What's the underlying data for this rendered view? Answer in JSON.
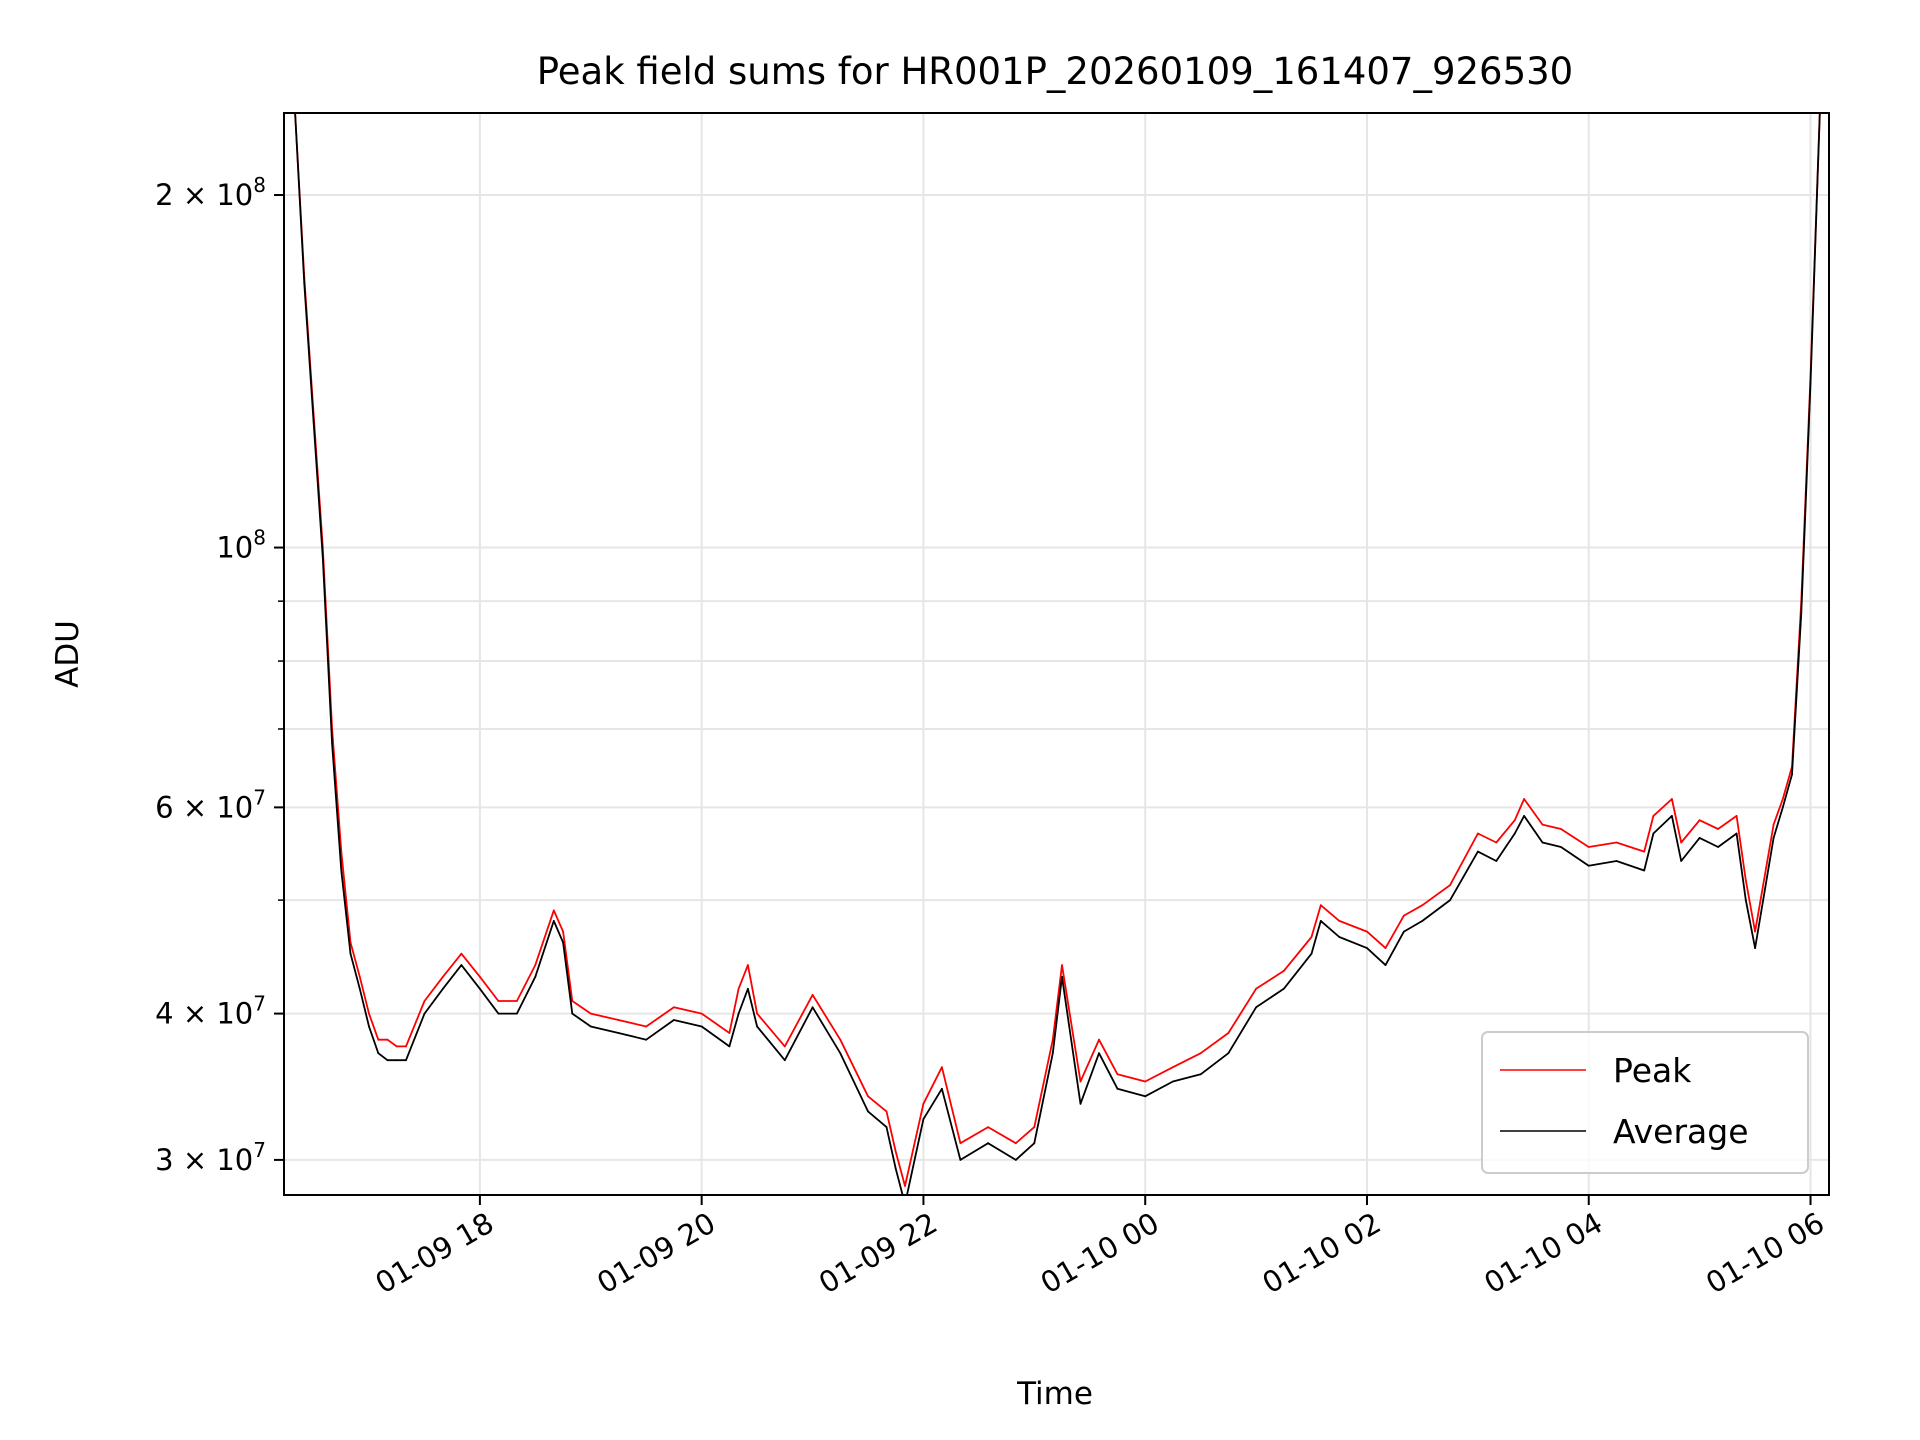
{
  "chart_data": {
    "type": "line",
    "title": "Peak field sums for HR001P_20260109_161407_926530",
    "xlabel": "Time",
    "ylabel": "ADU",
    "x_scale": "time",
    "y_scale": "log",
    "xlim": [
      "2026-01-09 16:14",
      "2026-01-10 06:10"
    ],
    "ylim": [
      28000000,
      235000000
    ],
    "x_ticks": [
      {
        "value": "2026-01-09 18:00",
        "label": "01-09 18"
      },
      {
        "value": "2026-01-09 20:00",
        "label": "01-09 20"
      },
      {
        "value": "2026-01-09 22:00",
        "label": "01-09 22"
      },
      {
        "value": "2026-01-10 00:00",
        "label": "01-10 00"
      },
      {
        "value": "2026-01-10 02:00",
        "label": "01-10 02"
      },
      {
        "value": "2026-01-10 04:00",
        "label": "01-10 04"
      },
      {
        "value": "2026-01-10 06:00",
        "label": "01-10 06"
      }
    ],
    "y_ticks": [
      {
        "value": 30000000,
        "mantissa": "3",
        "base": "10",
        "exp": "7"
      },
      {
        "value": 40000000,
        "mantissa": "4",
        "base": "10",
        "exp": "7"
      },
      {
        "value": 60000000,
        "mantissa": "6",
        "base": "10",
        "exp": "7"
      },
      {
        "value": 100000000,
        "mantissa": "",
        "base": "10",
        "exp": "8"
      },
      {
        "value": 200000000,
        "mantissa": "2",
        "base": "10",
        "exp": "8"
      }
    ],
    "y_minor_ticks": [
      50000000,
      70000000,
      80000000,
      90000000
    ],
    "grid": true,
    "legend_position": "lower-right",
    "series": [
      {
        "name": "Peak",
        "color": "#ff0000",
        "x": [
          "2026-01-09 16:20",
          "2026-01-09 16:25",
          "2026-01-09 16:30",
          "2026-01-09 16:35",
          "2026-01-09 16:40",
          "2026-01-09 16:45",
          "2026-01-09 16:50",
          "2026-01-09 16:55",
          "2026-01-09 17:00",
          "2026-01-09 17:05",
          "2026-01-09 17:10",
          "2026-01-09 17:15",
          "2026-01-09 17:20",
          "2026-01-09 17:30",
          "2026-01-09 17:40",
          "2026-01-09 17:50",
          "2026-01-09 18:00",
          "2026-01-09 18:10",
          "2026-01-09 18:20",
          "2026-01-09 18:30",
          "2026-01-09 18:40",
          "2026-01-09 18:45",
          "2026-01-09 18:50",
          "2026-01-09 19:00",
          "2026-01-09 19:15",
          "2026-01-09 19:30",
          "2026-01-09 19:45",
          "2026-01-09 20:00",
          "2026-01-09 20:15",
          "2026-01-09 20:20",
          "2026-01-09 20:25",
          "2026-01-09 20:30",
          "2026-01-09 20:45",
          "2026-01-09 21:00",
          "2026-01-09 21:15",
          "2026-01-09 21:30",
          "2026-01-09 21:40",
          "2026-01-09 21:45",
          "2026-01-09 21:50",
          "2026-01-09 22:00",
          "2026-01-09 22:10",
          "2026-01-09 22:20",
          "2026-01-09 22:35",
          "2026-01-09 22:50",
          "2026-01-09 23:00",
          "2026-01-09 23:10",
          "2026-01-09 23:15",
          "2026-01-09 23:25",
          "2026-01-09 23:35",
          "2026-01-09 23:45",
          "2026-01-10 00:00",
          "2026-01-10 00:15",
          "2026-01-10 00:30",
          "2026-01-10 00:45",
          "2026-01-10 01:00",
          "2026-01-10 01:15",
          "2026-01-10 01:30",
          "2026-01-10 01:35",
          "2026-01-10 01:45",
          "2026-01-10 02:00",
          "2026-01-10 02:10",
          "2026-01-10 02:20",
          "2026-01-10 02:30",
          "2026-01-10 02:45",
          "2026-01-10 03:00",
          "2026-01-10 03:10",
          "2026-01-10 03:20",
          "2026-01-10 03:25",
          "2026-01-10 03:35",
          "2026-01-10 03:45",
          "2026-01-10 04:00",
          "2026-01-10 04:15",
          "2026-01-10 04:30",
          "2026-01-10 04:35",
          "2026-01-10 04:45",
          "2026-01-10 04:50",
          "2026-01-10 05:00",
          "2026-01-10 05:10",
          "2026-01-10 05:20",
          "2026-01-10 05:25",
          "2026-01-10 05:30",
          "2026-01-10 05:40",
          "2026-01-10 05:45",
          "2026-01-10 05:50",
          "2026-01-10 05:55",
          "2026-01-10 06:00",
          "2026-01-10 06:05"
        ],
        "values": [
          235000000,
          170000000,
          130000000,
          100000000,
          70000000,
          55000000,
          46000000,
          43000000,
          40000000,
          38000000,
          38000000,
          37500000,
          37500000,
          41000000,
          43000000,
          45000000,
          43000000,
          41000000,
          41000000,
          44000000,
          49000000,
          47000000,
          41000000,
          40000000,
          39500000,
          39000000,
          40500000,
          40000000,
          38500000,
          42000000,
          44000000,
          40000000,
          37500000,
          41500000,
          38000000,
          34000000,
          33000000,
          30500000,
          28500000,
          33500000,
          36000000,
          31000000,
          32000000,
          31000000,
          32000000,
          38000000,
          44000000,
          35000000,
          38000000,
          35500000,
          35000000,
          36000000,
          37000000,
          38500000,
          42000000,
          43500000,
          46500000,
          49500000,
          48000000,
          47000000,
          45500000,
          48500000,
          49500000,
          51500000,
          57000000,
          56000000,
          58500000,
          61000000,
          58000000,
          57500000,
          55500000,
          56000000,
          55000000,
          59000000,
          61000000,
          56000000,
          58500000,
          57500000,
          59000000,
          52000000,
          47000000,
          58000000,
          61000000,
          65000000,
          90000000,
          140000000,
          235000000
        ]
      },
      {
        "name": "Average",
        "color": "#000000",
        "x": [
          "2026-01-09 16:20",
          "2026-01-09 16:25",
          "2026-01-09 16:30",
          "2026-01-09 16:35",
          "2026-01-09 16:40",
          "2026-01-09 16:45",
          "2026-01-09 16:50",
          "2026-01-09 16:55",
          "2026-01-09 17:00",
          "2026-01-09 17:05",
          "2026-01-09 17:10",
          "2026-01-09 17:15",
          "2026-01-09 17:20",
          "2026-01-09 17:30",
          "2026-01-09 17:40",
          "2026-01-09 17:50",
          "2026-01-09 18:00",
          "2026-01-09 18:10",
          "2026-01-09 18:20",
          "2026-01-09 18:30",
          "2026-01-09 18:40",
          "2026-01-09 18:45",
          "2026-01-09 18:50",
          "2026-01-09 19:00",
          "2026-01-09 19:15",
          "2026-01-09 19:30",
          "2026-01-09 19:45",
          "2026-01-09 20:00",
          "2026-01-09 20:15",
          "2026-01-09 20:20",
          "2026-01-09 20:25",
          "2026-01-09 20:30",
          "2026-01-09 20:45",
          "2026-01-09 21:00",
          "2026-01-09 21:15",
          "2026-01-09 21:30",
          "2026-01-09 21:40",
          "2026-01-09 21:45",
          "2026-01-09 21:50",
          "2026-01-09 22:00",
          "2026-01-09 22:10",
          "2026-01-09 22:20",
          "2026-01-09 22:35",
          "2026-01-09 22:50",
          "2026-01-09 23:00",
          "2026-01-09 23:10",
          "2026-01-09 23:15",
          "2026-01-09 23:25",
          "2026-01-09 23:35",
          "2026-01-09 23:45",
          "2026-01-10 00:00",
          "2026-01-10 00:15",
          "2026-01-10 00:30",
          "2026-01-10 00:45",
          "2026-01-10 01:00",
          "2026-01-10 01:15",
          "2026-01-10 01:30",
          "2026-01-10 01:35",
          "2026-01-10 01:45",
          "2026-01-10 02:00",
          "2026-01-10 02:10",
          "2026-01-10 02:20",
          "2026-01-10 02:30",
          "2026-01-10 02:45",
          "2026-01-10 03:00",
          "2026-01-10 03:10",
          "2026-01-10 03:20",
          "2026-01-10 03:25",
          "2026-01-10 03:35",
          "2026-01-10 03:45",
          "2026-01-10 04:00",
          "2026-01-10 04:15",
          "2026-01-10 04:30",
          "2026-01-10 04:35",
          "2026-01-10 04:45",
          "2026-01-10 04:50",
          "2026-01-10 05:00",
          "2026-01-10 05:10",
          "2026-01-10 05:20",
          "2026-01-10 05:25",
          "2026-01-10 05:30",
          "2026-01-10 05:40",
          "2026-01-10 05:45",
          "2026-01-10 05:50",
          "2026-01-10 05:55",
          "2026-01-10 06:00",
          "2026-01-10 06:05"
        ],
        "values": [
          235000000,
          168000000,
          128000000,
          98000000,
          68000000,
          53000000,
          45000000,
          42000000,
          39000000,
          37000000,
          36500000,
          36500000,
          36500000,
          40000000,
          42000000,
          44000000,
          42000000,
          40000000,
          40000000,
          43000000,
          48000000,
          46000000,
          40000000,
          39000000,
          38500000,
          38000000,
          39500000,
          39000000,
          37500000,
          40000000,
          42000000,
          39000000,
          36500000,
          40500000,
          37000000,
          33000000,
          32000000,
          29500000,
          27500000,
          32500000,
          34500000,
          30000000,
          31000000,
          30000000,
          31000000,
          37000000,
          43000000,
          33500000,
          37000000,
          34500000,
          34000000,
          35000000,
          35500000,
          37000000,
          40500000,
          42000000,
          45000000,
          48000000,
          46500000,
          45500000,
          44000000,
          47000000,
          48000000,
          50000000,
          55000000,
          54000000,
          57000000,
          59000000,
          56000000,
          55500000,
          53500000,
          54000000,
          53000000,
          57000000,
          59000000,
          54000000,
          56500000,
          55500000,
          57000000,
          50000000,
          45500000,
          56500000,
          60000000,
          64000000,
          88000000,
          138000000,
          235000000
        ]
      }
    ]
  }
}
